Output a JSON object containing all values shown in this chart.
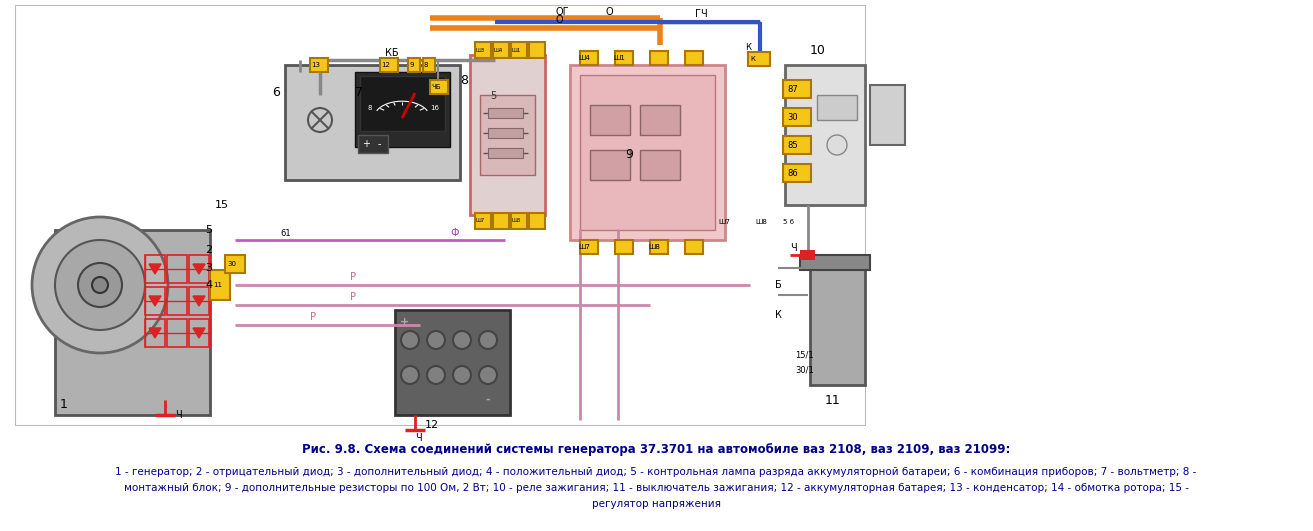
{
  "title_line1": "Рис. 9.8. Схема соединений системы генератора 37.3701 на автомобиле ваз 2108, ваз 2109, ваз 21099:",
  "title_line2": "1 - генератор; 2 - отрицательный диод; 3 - дополнительный диод; 4 - положительный диод; 5 - контрольная лампа разряда аккумуляторной батареи; 6 - комбинация приборов; 7 - вольтметр; 8 -",
  "title_line3": "монтажный блок; 9 - дополнительные резисторы по 100 Ом, 2 Вт; 10 - реле зажигания; 11 - выключатель зажигания; 12 - аккумуляторная батарея; 13 - конденсатор; 14 - обмотка ротора; 15 -",
  "title_line4": "регулятор напряжения",
  "bg_color": "#ffffff",
  "text_color": "#00008B",
  "figwidth": 13.13,
  "figheight": 5.31,
  "dpi": 100
}
